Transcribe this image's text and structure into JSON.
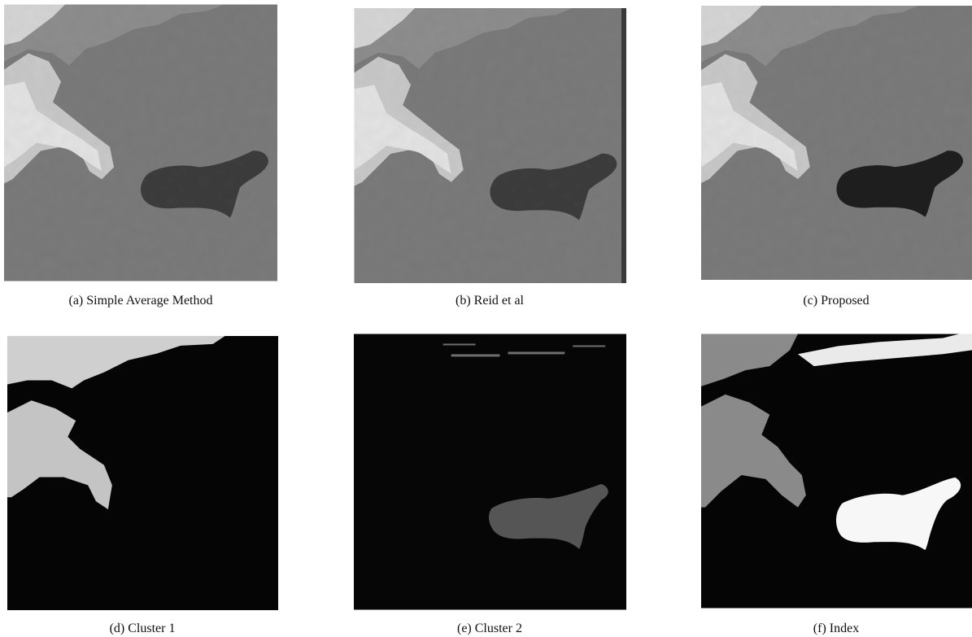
{
  "figure": {
    "panels": [
      {
        "caption": "(a) Simple Average Method"
      },
      {
        "caption": "(b) Reid et al"
      },
      {
        "caption": "(c) Proposed"
      },
      {
        "caption": "(d) Cluster 1"
      },
      {
        "caption": "(e) Cluster 2"
      },
      {
        "caption": "(f) Index"
      }
    ]
  }
}
